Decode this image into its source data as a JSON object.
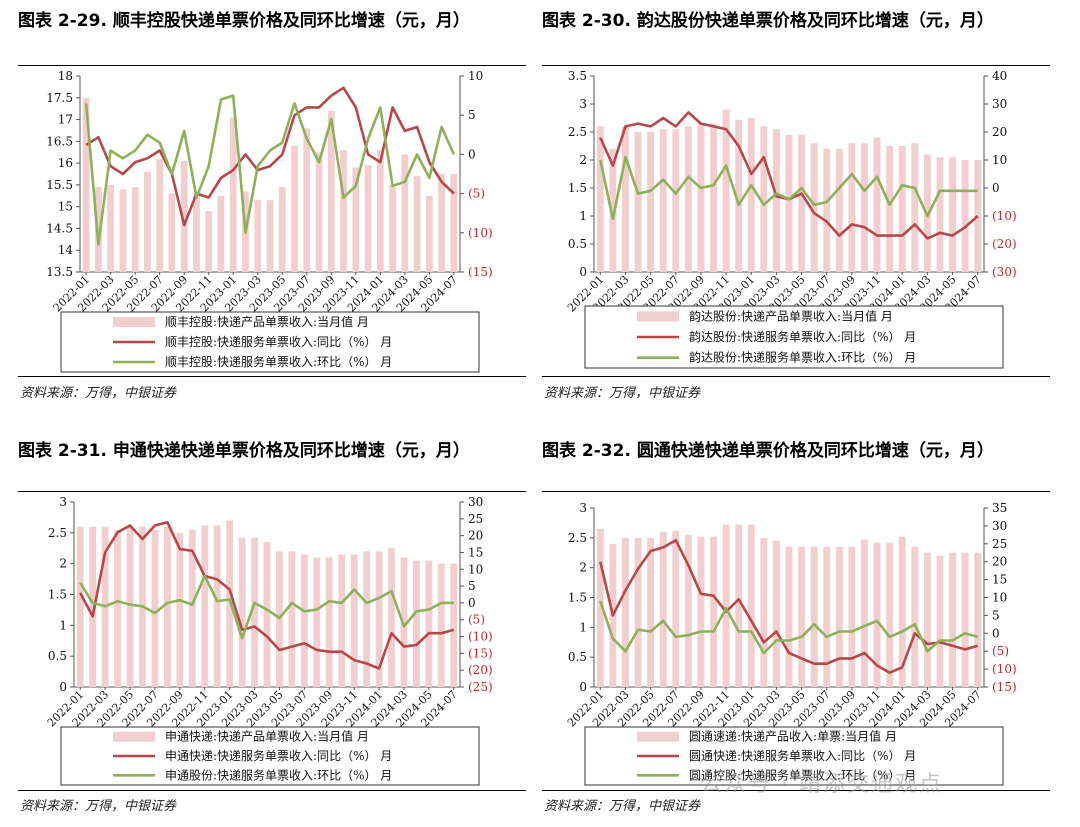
{
  "colors": {
    "bar": "#f2cfcf",
    "yoy": "#b8474a",
    "mom": "#8db05b",
    "neg": "#c0282b"
  },
  "panels": [
    {
      "title": "图表 2-29. 顺丰控股快递单票价格及同环比增速（元，月）",
      "source": "资料来源：万得，中银证券",
      "chart_data": {
        "type": "bar+line",
        "categories": [
          "2022-01",
          "2022-02",
          "2022-03",
          "2022-04",
          "2022-05",
          "2022-06",
          "2022-07",
          "2022-08",
          "2022-09",
          "2022-10",
          "2022-11",
          "2022-12",
          "2023-01",
          "2023-02",
          "2023-03",
          "2023-04",
          "2023-05",
          "2023-06",
          "2023-07",
          "2023-08",
          "2023-09",
          "2023-10",
          "2023-11",
          "2023-12",
          "2024-01",
          "2024-02",
          "2024-03",
          "2024-04",
          "2024-05",
          "2024-06",
          "2024-07"
        ],
        "xticks": [
          "2022-01",
          "2022-03",
          "2022-05",
          "2022-07",
          "2022-09",
          "2022-11",
          "2023-01",
          "2023-03",
          "2023-05",
          "2023-07",
          "2023-09",
          "2023-11",
          "2024-01",
          "2024-03",
          "2024-05",
          "2024-07"
        ],
        "left_axis": {
          "min": 13.5,
          "max": 18,
          "ticks": [
            "13.5",
            "14",
            "14.5",
            "15",
            "15.5",
            "16",
            "16.5",
            "17",
            "17.5",
            "18"
          ]
        },
        "right_axis": {
          "min": -15,
          "max": 10,
          "ticks": [
            [
              "10",
              10
            ],
            [
              "5",
              5
            ],
            [
              "0",
              0
            ],
            [
              "(5)",
              -5
            ],
            [
              "(10)",
              -10
            ],
            [
              "(15)",
              -15
            ]
          ]
        },
        "series": [
          {
            "name": "顺丰控股:快递产品单票收入:当月值 月",
            "kind": "bar",
            "axis": "left",
            "values": [
              17.5,
              15.45,
              15.5,
              15.4,
              15.45,
              15.8,
              16.1,
              15.3,
              16.05,
              15.3,
              14.9,
              15.25,
              17.05,
              15.35,
              15.15,
              15.15,
              15.45,
              16.4,
              16.8,
              16.25,
              17.2,
              16.3,
              15.9,
              15.95,
              16.3,
              15.5,
              16.2,
              15.7,
              15.25,
              15.75,
              15.75
            ]
          },
          {
            "name": "顺丰控股:快递服务单票收入:同比（%） 月",
            "kind": "line",
            "color": "yoy",
            "axis": "right",
            "values": [
              1.2,
              2.2,
              -1.5,
              -2.5,
              -1,
              -0.5,
              0.5,
              -2.5,
              -9,
              -5,
              -5.5,
              -3,
              -2,
              0,
              -2,
              -1.5,
              0,
              5,
              6,
              6,
              7.5,
              8.5,
              6,
              0,
              -1,
              6,
              3,
              3.5,
              -1,
              -3.5,
              -5
            ]
          },
          {
            "name": "顺丰控股:快递服务单票收入:环比（%） 月",
            "kind": "line",
            "color": "mom",
            "axis": "right",
            "values": [
              6.5,
              -11.5,
              0.5,
              -0.5,
              0.5,
              2.5,
              1.5,
              -2.5,
              3,
              -5.5,
              -1.5,
              7,
              7.5,
              -10,
              -1.5,
              0.5,
              1.5,
              6.5,
              2,
              -1,
              4.5,
              -5.5,
              -4,
              2,
              6,
              -4,
              -3.5,
              0,
              -3,
              3.5,
              0
            ]
          }
        ]
      }
    },
    {
      "title": "图表 2-30. 韵达股份快递单票价格及同环比增速（元，月）",
      "source": "资料来源：万得，中银证券",
      "chart_data": {
        "type": "bar+line",
        "categories": [
          "2022-01",
          "2022-02",
          "2022-03",
          "2022-04",
          "2022-05",
          "2022-06",
          "2022-07",
          "2022-08",
          "2022-09",
          "2022-10",
          "2022-11",
          "2022-12",
          "2023-01",
          "2023-02",
          "2023-03",
          "2023-04",
          "2023-05",
          "2023-06",
          "2023-07",
          "2023-08",
          "2023-09",
          "2023-10",
          "2023-11",
          "2023-12",
          "2024-01",
          "2024-02",
          "2024-03",
          "2024-04",
          "2024-05",
          "2024-06",
          "2024-07"
        ],
        "xticks": [
          "2022-01",
          "2022-03",
          "2022-05",
          "2022-07",
          "2022-09",
          "2022-11",
          "2023-01",
          "2023-03",
          "2023-05",
          "2023-07",
          "2023-09",
          "2023-11",
          "2024-01",
          "2024-03",
          "2024-05",
          "2024-07"
        ],
        "left_axis": {
          "min": 0,
          "max": 3.5,
          "ticks": [
            "0",
            "0.5",
            "1",
            "1.5",
            "2",
            "2.5",
            "3",
            "3.5"
          ]
        },
        "right_axis": {
          "min": -30,
          "max": 40,
          "ticks": [
            [
              "40",
              40
            ],
            [
              "30",
              30
            ],
            [
              "20",
              20
            ],
            [
              "10",
              10
            ],
            [
              "0",
              0
            ],
            [
              "(10)",
              -10
            ],
            [
              "(20)",
              -20
            ],
            [
              "(30)",
              -30
            ]
          ]
        },
        "series": [
          {
            "name": "韵达股份:快递产品单票收入:当月值 月",
            "kind": "bar",
            "axis": "left",
            "values": [
              2.6,
              2.2,
              2.6,
              2.5,
              2.5,
              2.55,
              2.55,
              2.6,
              2.65,
              2.65,
              2.9,
              2.72,
              2.75,
              2.6,
              2.55,
              2.45,
              2.45,
              2.3,
              2.2,
              2.2,
              2.3,
              2.3,
              2.4,
              2.25,
              2.25,
              2.3,
              2.1,
              2.05,
              2.05,
              2.0,
              2.0
            ]
          },
          {
            "name": "韵达股份:快递服务单票收入:同比（%） 月",
            "kind": "line",
            "color": "yoy",
            "axis": "right",
            "values": [
              18,
              8,
              22,
              23,
              22,
              25,
              22,
              27,
              23,
              22,
              21,
              15,
              5,
              11,
              -3,
              -4,
              -2,
              -9,
              -12,
              -17,
              -13,
              -14,
              -17,
              -17,
              -17,
              -13,
              -18,
              -16,
              -17,
              -14,
              -10
            ]
          },
          {
            "name": "韵达股份:快递服务单票收入:环比（%） 月",
            "kind": "line",
            "color": "mom",
            "axis": "right",
            "values": [
              10,
              -11,
              11,
              -2,
              -1,
              3,
              -2,
              4,
              0,
              1,
              8,
              -6,
              1,
              -6,
              -2,
              -4,
              0,
              -6,
              -5,
              0,
              5,
              -1,
              4,
              -6,
              1,
              0,
              -10,
              -1,
              -1,
              -1,
              -1
            ]
          }
        ]
      }
    },
    {
      "title": "图表 2-31. 申通快递快递单票价格及同环比增速（元，月）",
      "source": "资料来源：万得，中银证券",
      "chart_data": {
        "type": "bar+line",
        "categories": [
          "2022-01",
          "2022-02",
          "2022-03",
          "2022-04",
          "2022-05",
          "2022-06",
          "2022-07",
          "2022-08",
          "2022-09",
          "2022-10",
          "2022-11",
          "2022-12",
          "2023-01",
          "2023-02",
          "2023-03",
          "2023-04",
          "2023-05",
          "2023-06",
          "2023-07",
          "2023-08",
          "2023-09",
          "2023-10",
          "2023-11",
          "2023-12",
          "2024-01",
          "2024-02",
          "2024-03",
          "2024-04",
          "2024-05",
          "2024-06",
          "2024-07"
        ],
        "xticks": [
          "2022-01",
          "2022-03",
          "2022-05",
          "2022-07",
          "2022-09",
          "2022-11",
          "2023-01",
          "2023-03",
          "2023-05",
          "2023-07",
          "2023-09",
          "2023-11",
          "2024-01",
          "2024-03",
          "2024-05",
          "2024-07"
        ],
        "left_axis": {
          "min": 0,
          "max": 3,
          "ticks": [
            "0",
            "0.5",
            "1",
            "1.5",
            "2",
            "2.5",
            "3"
          ]
        },
        "right_axis": {
          "min": -25,
          "max": 30,
          "ticks": [
            [
              "30",
              30
            ],
            [
              "25",
              25
            ],
            [
              "20",
              20
            ],
            [
              "15",
              15
            ],
            [
              "10",
              10
            ],
            [
              "5",
              5
            ],
            [
              "0",
              0
            ],
            [
              "(5)",
              -5
            ],
            [
              "(10)",
              -10
            ],
            [
              "(15)",
              -15
            ],
            [
              "(20)",
              -20
            ],
            [
              "(25)",
              -25
            ]
          ]
        },
        "series": [
          {
            "name": "申通快递:快递产品单票收入:当月值 月",
            "kind": "bar",
            "axis": "left",
            "values": [
              2.6,
              2.6,
              2.6,
              2.55,
              2.6,
              2.6,
              2.55,
              2.6,
              2.5,
              2.55,
              2.62,
              2.62,
              2.7,
              2.42,
              2.42,
              2.35,
              2.2,
              2.2,
              2.15,
              2.1,
              2.1,
              2.15,
              2.15,
              2.2,
              2.2,
              2.25,
              2.1,
              2.05,
              2.05,
              2.0,
              2.0
            ]
          },
          {
            "name": "申通快递:快递服务单票收入:同比（%） 月",
            "kind": "line",
            "color": "yoy",
            "axis": "right",
            "values": [
              3,
              -4,
              15,
              21,
              23,
              19,
              23,
              24,
              16,
              15.5,
              8,
              7,
              4,
              -8,
              -7,
              -10,
              -14,
              -13,
              -12,
              -14,
              -14.5,
              -14.5,
              -17,
              -18,
              -19.5,
              -9,
              -13,
              -12.5,
              -9,
              -9,
              -8
            ]
          },
          {
            "name": "申通股份:快递服务单票收入:环比（%） 月",
            "kind": "line",
            "color": "mom",
            "axis": "right",
            "values": [
              6,
              0,
              -1,
              0.5,
              -0.5,
              -1,
              -3,
              0,
              0.8,
              -0.5,
              8,
              0.5,
              1,
              -10.5,
              0,
              -2,
              -4.5,
              0,
              -2.5,
              -2,
              0.5,
              0,
              4,
              0,
              1.5,
              3.5,
              -7,
              -2.5,
              -2,
              0,
              0
            ]
          }
        ]
      }
    },
    {
      "title": "图表 2-32. 圆通快递快递单票价格及同环比增速（元，月）",
      "source": "资料来源：万得，中银证券",
      "chart_data": {
        "type": "bar+line",
        "categories": [
          "2022-01",
          "2022-02",
          "2022-03",
          "2022-04",
          "2022-05",
          "2022-06",
          "2022-07",
          "2022-08",
          "2022-09",
          "2022-10",
          "2022-11",
          "2022-12",
          "2023-01",
          "2023-02",
          "2023-03",
          "2023-04",
          "2023-05",
          "2023-06",
          "2023-07",
          "2023-08",
          "2023-09",
          "2023-10",
          "2023-11",
          "2023-12",
          "2024-01",
          "2024-02",
          "2024-03",
          "2024-04",
          "2024-05",
          "2024-06",
          "2024-07"
        ],
        "xticks": [
          "2022-01",
          "2022-03",
          "2022-05",
          "2022-07",
          "2022-09",
          "2022-11",
          "2023-01",
          "2023-03",
          "2023-05",
          "2023-07",
          "2023-09",
          "2023-11",
          "2024-01",
          "2024-03",
          "2024-05",
          "2024-07"
        ],
        "left_axis": {
          "min": 0,
          "max": 3,
          "ticks": [
            "0",
            "0.5",
            "1",
            "1.5",
            "2",
            "2.5",
            "3"
          ]
        },
        "right_axis": {
          "min": -15,
          "max": 35,
          "ticks": [
            [
              "35",
              35
            ],
            [
              "30",
              30
            ],
            [
              "25",
              25
            ],
            [
              "20",
              20
            ],
            [
              "15",
              15
            ],
            [
              "10",
              10
            ],
            [
              "5",
              5
            ],
            [
              "0",
              0
            ],
            [
              "(5)",
              -5
            ],
            [
              "(10)",
              -10
            ],
            [
              "(15)",
              -15
            ]
          ]
        },
        "series": [
          {
            "name": "圆通速递:快递产品收入:单票:当月值 月",
            "kind": "bar",
            "axis": "left",
            "values": [
              2.65,
              2.4,
              2.5,
              2.5,
              2.5,
              2.6,
              2.62,
              2.55,
              2.52,
              2.52,
              2.72,
              2.72,
              2.72,
              2.5,
              2.45,
              2.35,
              2.35,
              2.35,
              2.35,
              2.35,
              2.35,
              2.47,
              2.42,
              2.42,
              2.52,
              2.35,
              2.25,
              2.2,
              2.25,
              2.25,
              2.25
            ]
          },
          {
            "name": "圆通快递:快递服务单票收入:同比（%） 月",
            "kind": "line",
            "color": "yoy",
            "axis": "right",
            "values": [
              20,
              5,
              12,
              18,
              23,
              24,
              26,
              19,
              11,
              10.5,
              6,
              9.5,
              3.5,
              -2.5,
              0.5,
              -5.5,
              -7,
              -8.5,
              -8.5,
              -7,
              -7,
              -5.5,
              -9,
              -11,
              -9.5,
              0,
              -3,
              -2.5,
              -3.5,
              -4.5,
              -3.5
            ]
          },
          {
            "name": "圆通控股:快递服务单票收入:环比（%） 月",
            "kind": "line",
            "color": "mom",
            "axis": "right",
            "values": [
              9,
              -1.5,
              -5,
              1,
              0.5,
              3.5,
              -1,
              -0.5,
              0.5,
              0.5,
              7,
              0.5,
              0.5,
              -5.5,
              -2,
              -2,
              -1,
              2.5,
              -1,
              0.5,
              0.5,
              2,
              3.5,
              -1,
              0.5,
              2.5,
              -5,
              -2,
              -2,
              0,
              -1
            ]
          }
        ]
      }
    }
  ],
  "watermark": "公众号 · 靖添交通观点"
}
